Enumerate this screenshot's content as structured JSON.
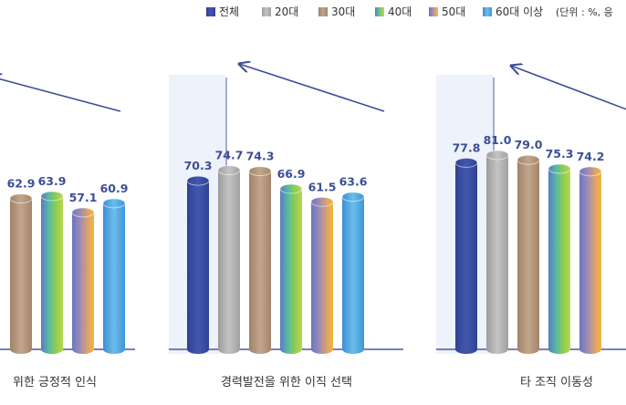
{
  "legend": {
    "items": [
      {
        "label": "전체",
        "color": "#3A4FA3"
      },
      {
        "label": "20대",
        "color": "#AFAFAF"
      },
      {
        "label": "30대",
        "color": "#B39579"
      },
      {
        "label": "40대",
        "color": "#7DBF6A"
      },
      {
        "label": "50대",
        "color": "#E8A548"
      },
      {
        "label": "60대 이상",
        "color": "#4FA6DD"
      }
    ],
    "unit_note": "(단위 : %, 응"
  },
  "colors": {
    "axis": "#4A5A9A",
    "value_label": "#3D4E97",
    "arrow": "#3D4E97",
    "shade": "#EEF2FA",
    "category_label": "#333333"
  },
  "chart_data": [
    {
      "type": "bar",
      "title": "위한 긍정적 인식",
      "categories": [
        "전체",
        "20대",
        "30대",
        "40대",
        "50대",
        "60대 이상"
      ],
      "values": [
        null,
        null,
        62.9,
        63.9,
        57.1,
        60.9
      ],
      "ylim": [
        0,
        100
      ]
    },
    {
      "type": "bar",
      "title": "경력발전을 위한 이직 선택",
      "categories": [
        "전체",
        "20대",
        "30대",
        "40대",
        "50대",
        "60대 이상"
      ],
      "values": [
        70.3,
        74.7,
        74.3,
        66.9,
        61.5,
        63.6
      ],
      "ylim": [
        0,
        100
      ]
    },
    {
      "type": "bar",
      "title": "타 조직 이동성",
      "categories": [
        "전체",
        "20대",
        "30대",
        "40대",
        "50대",
        "60대 이상"
      ],
      "values": [
        77.8,
        81.0,
        79.0,
        75.3,
        74.2,
        null
      ],
      "ylim": [
        0,
        100
      ]
    }
  ]
}
